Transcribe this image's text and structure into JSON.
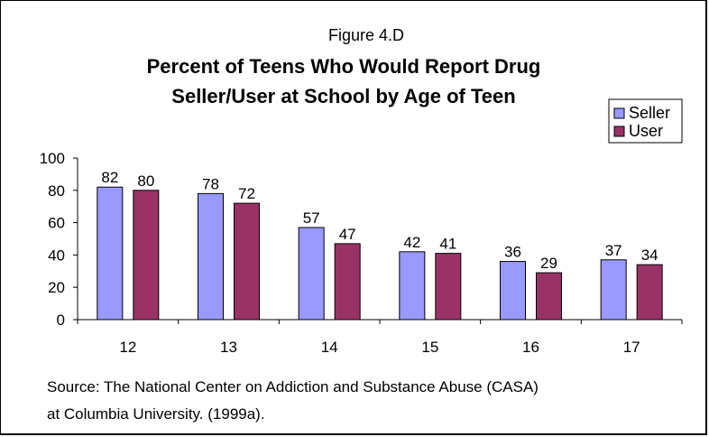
{
  "chart_data": {
    "type": "bar",
    "figure_label": "Figure 4.D",
    "title_line1": "Percent of Teens Who Would Report Drug",
    "title_line2": "Seller/User at School by Age of Teen",
    "categories": [
      "12",
      "13",
      "14",
      "15",
      "16",
      "17"
    ],
    "series": [
      {
        "name": "Seller",
        "values": [
          82,
          78,
          57,
          42,
          36,
          37
        ],
        "color": "#9999ff"
      },
      {
        "name": "User",
        "values": [
          80,
          72,
          47,
          41,
          29,
          34
        ],
        "color": "#993366"
      }
    ],
    "ylim": [
      0,
      100
    ],
    "yticks": [
      0,
      20,
      40,
      60,
      80,
      100
    ],
    "legend_position": "top-right",
    "grid": false,
    "source_line1": "Source:  The National Center on Addiction and Substance Abuse (CASA)",
    "source_line2": "at Columbia University. (1999a)."
  }
}
